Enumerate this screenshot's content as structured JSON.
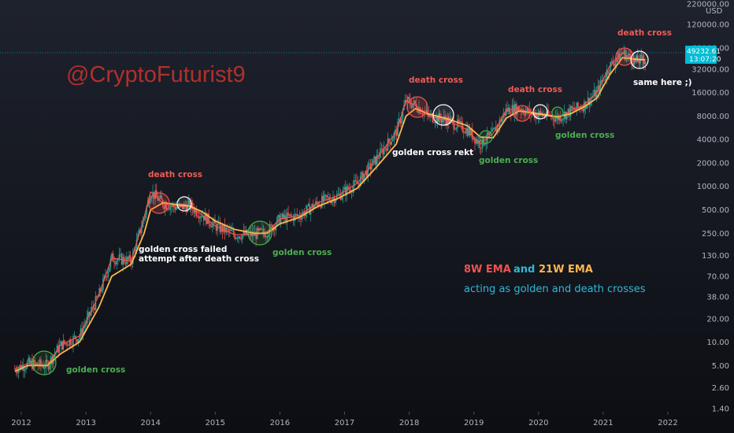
{
  "colors": {
    "background": "#131722",
    "candle_up": "#26a69a",
    "candle_down": "#ef5350",
    "ema_fast": "#ef5350",
    "ema_slow": "#ffb74d",
    "price_badge": "#00bcd4",
    "watermark": "#b0302d",
    "death_label": "#f05a55",
    "golden_label": "#4caf50",
    "white_label": "#ffffff",
    "legend_blue": "#2fb8d8"
  },
  "watermark": "@CryptoFuturist9",
  "price_badge": {
    "price": "49232.61",
    "countdown": "13:07:20"
  },
  "axis": {
    "currency": "USD",
    "y_ticks": [
      "220000.00",
      "120000.00",
      "60000.00",
      "32000.00",
      "16000.00",
      "8000.00",
      "4000.00",
      "2000.00",
      "1000.00",
      "500.00",
      "250.00",
      "130.00",
      "70.00",
      "38.00",
      "20.00",
      "10.00",
      "5.00",
      "2.60",
      "1.40"
    ],
    "x_ticks": [
      "2012",
      "2013",
      "2014",
      "2015",
      "2016",
      "2017",
      "2018",
      "2019",
      "2020",
      "2021",
      "2022"
    ]
  },
  "annotations": [
    {
      "text": "death cross",
      "color": "death_label"
    },
    {
      "text": "death cross",
      "color": "death_label"
    },
    {
      "text": "death cross",
      "color": "death_label"
    },
    {
      "text": "death cross",
      "color": "death_label"
    },
    {
      "text": "golden cross",
      "color": "golden_label"
    },
    {
      "text": "golden cross",
      "color": "golden_label"
    },
    {
      "text": "golden cross",
      "color": "golden_label"
    },
    {
      "text": "golden cross",
      "color": "golden_label"
    },
    {
      "text": "golden cross failed",
      "color": "white_label"
    },
    {
      "text": "attempt after death cross",
      "color": "white_label"
    },
    {
      "text": "golden cross rekt",
      "color": "white_label"
    },
    {
      "text": "same here ;)",
      "color": "white_label"
    }
  ],
  "legend": {
    "ema8": "8W EMA",
    "and": "and",
    "ema21": "21W EMA",
    "subtitle": "acting as golden and death crosses"
  },
  "chart_data": {
    "type": "line",
    "y_scale": "log",
    "ylabel": "USD",
    "ylim": [
      1.4,
      220000
    ],
    "xlim": [
      2011.8,
      2022.3
    ],
    "series": [
      {
        "name": "8W EMA",
        "color": "#ef5350",
        "x": [
          2011.9,
          2012.1,
          2012.4,
          2012.6,
          2012.9,
          2013.2,
          2013.4,
          2013.7,
          2013.9,
          2014.0,
          2014.2,
          2014.4,
          2014.6,
          2014.8,
          2015.0,
          2015.3,
          2015.6,
          2015.8,
          2016.0,
          2016.3,
          2016.6,
          2016.9,
          2017.2,
          2017.5,
          2017.8,
          2017.95,
          2018.1,
          2018.3,
          2018.6,
          2018.9,
          2019.1,
          2019.3,
          2019.5,
          2019.7,
          2019.9,
          2020.1,
          2020.3,
          2020.5,
          2020.7,
          2020.9,
          2021.1,
          2021.3,
          2021.5,
          2021.65
        ],
        "y": [
          4.5,
          5.3,
          5.0,
          9.0,
          12.0,
          40.0,
          120.0,
          110.0,
          400.0,
          850.0,
          600.0,
          540.0,
          560.0,
          430.0,
          310.0,
          240.0,
          240.0,
          260.0,
          380.0,
          420.0,
          620.0,
          760.0,
          1100.0,
          2300.0,
          5000.0,
          12500.0,
          11000.0,
          8000.0,
          7000.0,
          5300.0,
          3500.0,
          4800.0,
          9500.0,
          10000.0,
          8500.0,
          8200.0,
          7600.0,
          9300.0,
          11000.0,
          16000.0,
          35000.0,
          52000.0,
          40000.0,
          43000.0
        ]
      },
      {
        "name": "21W EMA",
        "color": "#ffb74d",
        "x": [
          2011.9,
          2012.1,
          2012.4,
          2012.6,
          2012.9,
          2013.2,
          2013.4,
          2013.7,
          2013.9,
          2014.0,
          2014.2,
          2014.4,
          2014.6,
          2014.8,
          2015.0,
          2015.3,
          2015.6,
          2015.8,
          2016.0,
          2016.3,
          2016.6,
          2016.9,
          2017.2,
          2017.5,
          2017.8,
          2017.95,
          2018.1,
          2018.3,
          2018.6,
          2018.9,
          2019.1,
          2019.3,
          2019.5,
          2019.7,
          2019.9,
          2020.1,
          2020.3,
          2020.5,
          2020.7,
          2020.9,
          2021.1,
          2021.3,
          2021.5,
          2021.65
        ],
        "y": [
          4.2,
          5.0,
          5.0,
          7.0,
          10.0,
          28.0,
          70.0,
          100.0,
          250.0,
          500.0,
          620.0,
          580.0,
          560.0,
          470.0,
          360.0,
          280.0,
          250.0,
          250.0,
          330.0,
          400.0,
          560.0,
          700.0,
          950.0,
          1800.0,
          3500.0,
          8000.0,
          10000.0,
          8500.0,
          7300.0,
          6000.0,
          4300.0,
          4200.0,
          7500.0,
          9300.0,
          8800.0,
          8300.0,
          7800.0,
          8600.0,
          10500.0,
          13500.0,
          27000.0,
          45000.0,
          43000.0,
          42000.0
        ]
      }
    ]
  }
}
